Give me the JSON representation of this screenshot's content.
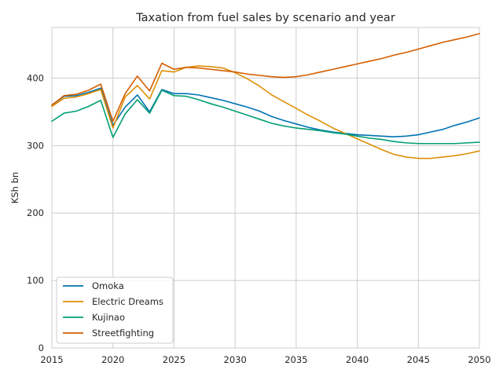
{
  "chart_data": {
    "type": "line",
    "title": "Taxation from fuel sales by scenario and year",
    "xlabel": "",
    "ylabel": "KSh bn",
    "xlim": [
      2015,
      2050
    ],
    "ylim": [
      0,
      475
    ],
    "xticks": [
      "2015",
      "2020",
      "2025",
      "2030",
      "2035",
      "2040",
      "2045",
      "2050"
    ],
    "yticks": [
      "0",
      "100",
      "200",
      "300",
      "400"
    ],
    "grid": true,
    "legend_position": "lower-left",
    "x": [
      2015,
      2016,
      2017,
      2018,
      2019,
      2020,
      2021,
      2022,
      2023,
      2024,
      2025,
      2026,
      2027,
      2028,
      2029,
      2030,
      2031,
      2032,
      2033,
      2034,
      2035,
      2036,
      2037,
      2038,
      2039,
      2040,
      2041,
      2042,
      2043,
      2044,
      2045,
      2046,
      2047,
      2048,
      2049,
      2050
    ],
    "series": [
      {
        "name": "Omoka",
        "color": "#0173b2",
        "values": [
          360,
          373,
          374,
          379,
          385,
          330,
          357,
          375,
          350,
          383,
          377,
          377,
          375,
          371,
          367,
          362,
          357,
          351,
          343,
          337,
          332,
          327,
          323,
          320,
          318,
          316,
          315,
          314,
          313,
          314,
          316,
          320,
          324,
          330,
          335,
          341
        ]
      },
      {
        "name": "Electric Dreams",
        "color": "#de8f05",
        "values": [
          358,
          370,
          372,
          377,
          383,
          326,
          372,
          389,
          369,
          411,
          409,
          416,
          418,
          417,
          415,
          408,
          399,
          388,
          375,
          365,
          355,
          345,
          336,
          326,
          318,
          310,
          302,
          294,
          287,
          283,
          281,
          281,
          283,
          285,
          288,
          292
        ]
      },
      {
        "name": "Kujinao",
        "color": "#029e73",
        "values": [
          336,
          348,
          351,
          358,
          367,
          312,
          347,
          368,
          348,
          382,
          374,
          373,
          368,
          362,
          357,
          351,
          345,
          339,
          333,
          329,
          326,
          324,
          322,
          319,
          317,
          314,
          311,
          309,
          306,
          304,
          303,
          303,
          303,
          303,
          304,
          305
        ]
      },
      {
        "name": "Streetfighting",
        "color": "#d55e00",
        "values": [
          360,
          374,
          376,
          382,
          391,
          336,
          377,
          403,
          381,
          422,
          413,
          416,
          415,
          413,
          411,
          409,
          406,
          404,
          402,
          401,
          402,
          405,
          409,
          413,
          417,
          421,
          425,
          429,
          434,
          438,
          443,
          448,
          453,
          457,
          461,
          466
        ]
      }
    ]
  }
}
